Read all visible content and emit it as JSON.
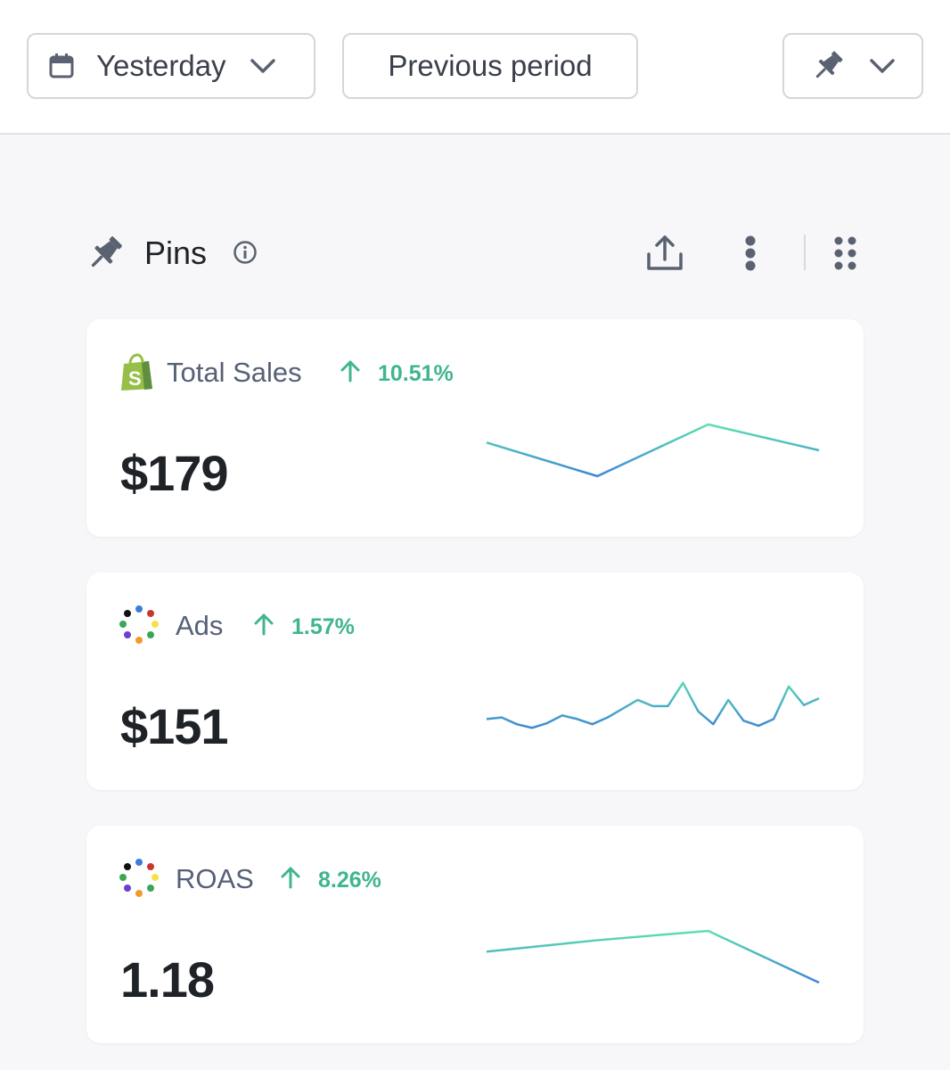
{
  "toolbar": {
    "date_range_label": "Yesterday",
    "compare_label": "Previous period"
  },
  "section": {
    "title": "Pins"
  },
  "metrics": [
    {
      "name": "Total Sales",
      "change": "10.51%",
      "direction": "up",
      "value": "$179",
      "source_icon": "shopify-icon",
      "trend": [
        0.65,
        0.0,
        1.0,
        0.5
      ]
    },
    {
      "name": "Ads",
      "change": "1.57%",
      "direction": "up",
      "value": "$151",
      "source_icon": "multi-channel-icon",
      "trend": [
        0.2,
        0.23,
        0.1,
        0.03,
        0.12,
        0.27,
        0.2,
        0.1,
        0.23,
        0.4,
        0.57,
        0.45,
        0.45,
        0.9,
        0.35,
        0.1,
        0.57,
        0.17,
        0.07,
        0.2,
        0.83,
        0.47,
        0.6
      ]
    },
    {
      "name": "ROAS",
      "change": "8.26%",
      "direction": "up",
      "value": "1.18",
      "source_icon": "multi-channel-icon",
      "trend": [
        0.6,
        0.82,
        1.0,
        0.0
      ]
    }
  ],
  "colors": {
    "positive": "#3fb68b",
    "spark_teal": "#5de0b0",
    "spark_blue": "#3d86d6"
  }
}
